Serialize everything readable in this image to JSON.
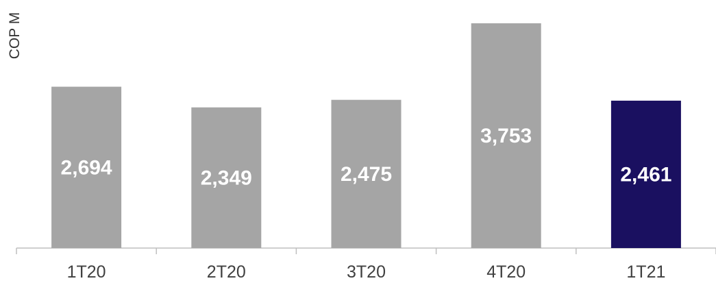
{
  "chart_data": {
    "type": "bar",
    "title": "",
    "ylabel": "COP M",
    "xlabel": "",
    "categories": [
      "1T20",
      "2T20",
      "3T20",
      "4T20",
      "1T21"
    ],
    "values": [
      2694,
      2349,
      2475,
      3753,
      2461
    ],
    "value_labels": [
      "2,694",
      "2,349",
      "2,475",
      "3,753",
      "2,461"
    ],
    "ylim": [
      0,
      3900
    ],
    "grid": false,
    "legend": "none",
    "colors": {
      "default_bar": "#a5a5a5",
      "highlight_bar": "#1a1060",
      "highlight_index": 4,
      "value_label": "#ffffff",
      "tick_label": "#404040",
      "axis": "#bfbfbf"
    }
  }
}
